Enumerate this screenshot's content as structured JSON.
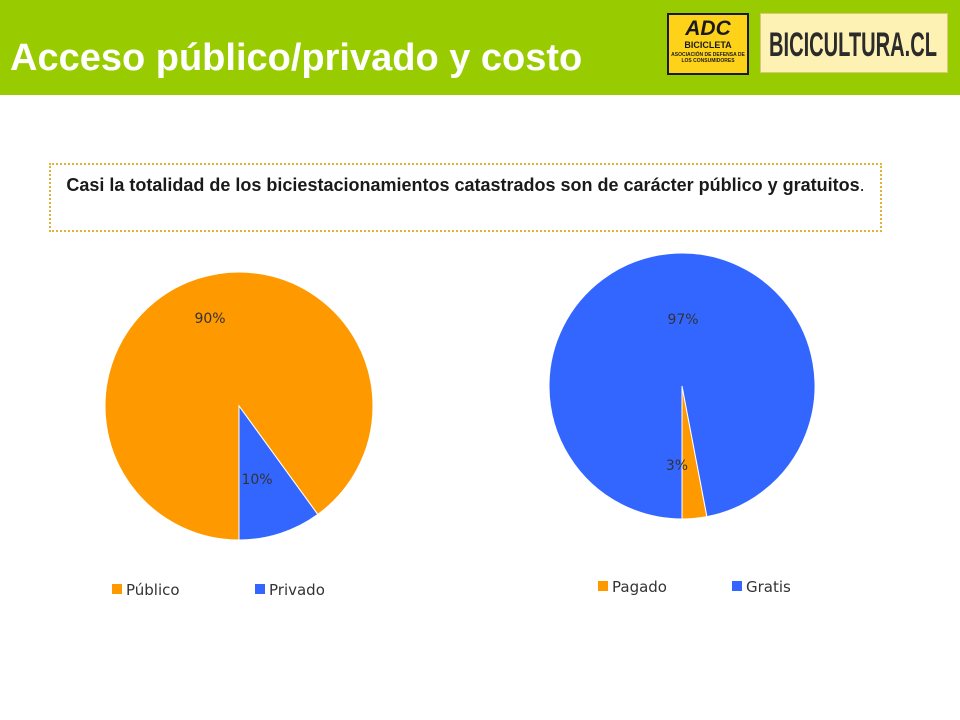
{
  "header": {
    "title": "Acceso público/privado y costo",
    "logo_adc_main": "ADC",
    "logo_adc_sub": "BICICLETA",
    "logo_adc_small": "ASOCIACIÓN DE DEFENSA DE LOS CONSUMIDORES",
    "logo_bicicultura": "BICICULTURA.CL"
  },
  "callout": {
    "text": "Casi la totalidad de los biciestacionamientos catastrados son de carácter público y gratuitos",
    "period": "."
  },
  "chart_data": [
    {
      "type": "pie",
      "categories": [
        "Público",
        "Privado"
      ],
      "values": [
        90,
        10
      ],
      "labels": [
        "90%",
        "10%"
      ],
      "colors": [
        "#ff9900",
        "#3366ff"
      ],
      "legend": "bottom"
    },
    {
      "type": "pie",
      "categories": [
        "Pagado",
        "Gratis"
      ],
      "values": [
        3,
        97
      ],
      "labels": [
        "3%",
        "97%"
      ],
      "colors": [
        "#ff9900",
        "#3366ff"
      ],
      "legend": "bottom"
    }
  ]
}
